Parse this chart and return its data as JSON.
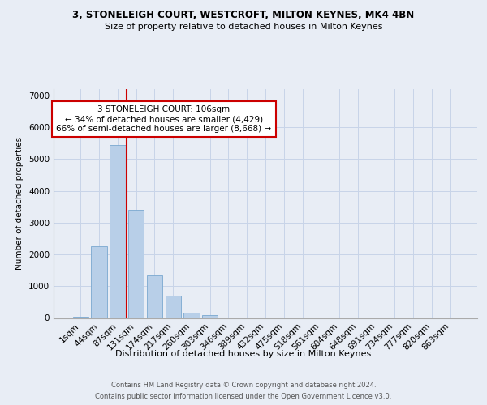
{
  "title_line1": "3, STONELEIGH COURT, WESTCROFT, MILTON KEYNES, MK4 4BN",
  "title_line2": "Size of property relative to detached houses in Milton Keynes",
  "xlabel": "Distribution of detached houses by size in Milton Keynes",
  "ylabel": "Number of detached properties",
  "footer_line1": "Contains HM Land Registry data © Crown copyright and database right 2024.",
  "footer_line2": "Contains public sector information licensed under the Open Government Licence v3.0.",
  "bar_labels": [
    "1sqm",
    "44sqm",
    "87sqm",
    "131sqm",
    "174sqm",
    "217sqm",
    "260sqm",
    "303sqm",
    "346sqm",
    "389sqm",
    "432sqm",
    "475sqm",
    "518sqm",
    "561sqm",
    "604sqm",
    "648sqm",
    "691sqm",
    "734sqm",
    "777sqm",
    "820sqm",
    "863sqm"
  ],
  "bar_values": [
    50,
    2250,
    5450,
    3400,
    1350,
    700,
    170,
    90,
    10,
    0,
    0,
    0,
    0,
    0,
    0,
    0,
    0,
    0,
    0,
    0,
    0
  ],
  "bar_color": "#b8cfe8",
  "bar_edgecolor": "#7aa8d0",
  "grid_color": "#c8d4e8",
  "bg_color": "#e8edf5",
  "vline_x": 2.5,
  "vline_color": "#cc0000",
  "annotation_text": "3 STONELEIGH COURT: 106sqm\n← 34% of detached houses are smaller (4,429)\n66% of semi-detached houses are larger (8,668) →",
  "annotation_box_color": "#ffffff",
  "annotation_box_edgecolor": "#cc0000",
  "ylim": [
    0,
    7200
  ],
  "yticks": [
    0,
    1000,
    2000,
    3000,
    4000,
    5000,
    6000,
    7000
  ]
}
